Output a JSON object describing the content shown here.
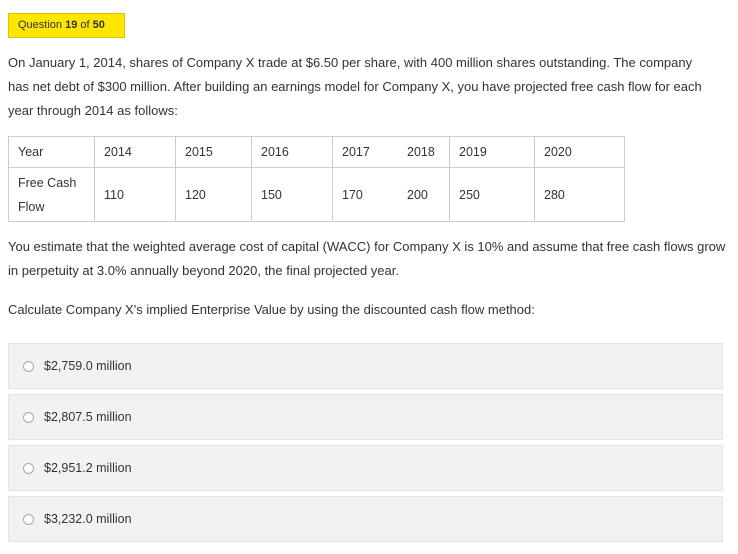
{
  "question": {
    "prefix": "Question",
    "number": "19",
    "of_word": "of",
    "total": "50"
  },
  "prompt": "On January 1, 2014, shares of Company X trade at $6.50 per share, with 400 million shares outstanding. The company has net debt of $300 million. After building an earnings model for Company X, you have projected free cash flow for each year through 2014 as follows:",
  "table": {
    "header": [
      "Year",
      "2014",
      "2015",
      "2016",
      "2017",
      "2018",
      "2019",
      "2020"
    ],
    "row_label": "Free Cash Flow",
    "values": [
      "110",
      "120",
      "150",
      "170",
      "200",
      "250",
      "280"
    ]
  },
  "assumption": "You estimate that the weighted average cost of capital (WACC) for Company X is 10% and assume that free cash flows grow in perpetuity at 3.0% annually beyond 2020, the final projected year.",
  "instruction": "Calculate Company X's implied Enterprise Value by using the discounted cash flow method:",
  "options": [
    "$2,759.0 million",
    "$2,807.5 million",
    "$2,951.2 million",
    "$3,232.0 million"
  ],
  "colors": {
    "badge_bg": "#ffe600",
    "option_bg": "#f2f2f2",
    "text": "#333333"
  }
}
